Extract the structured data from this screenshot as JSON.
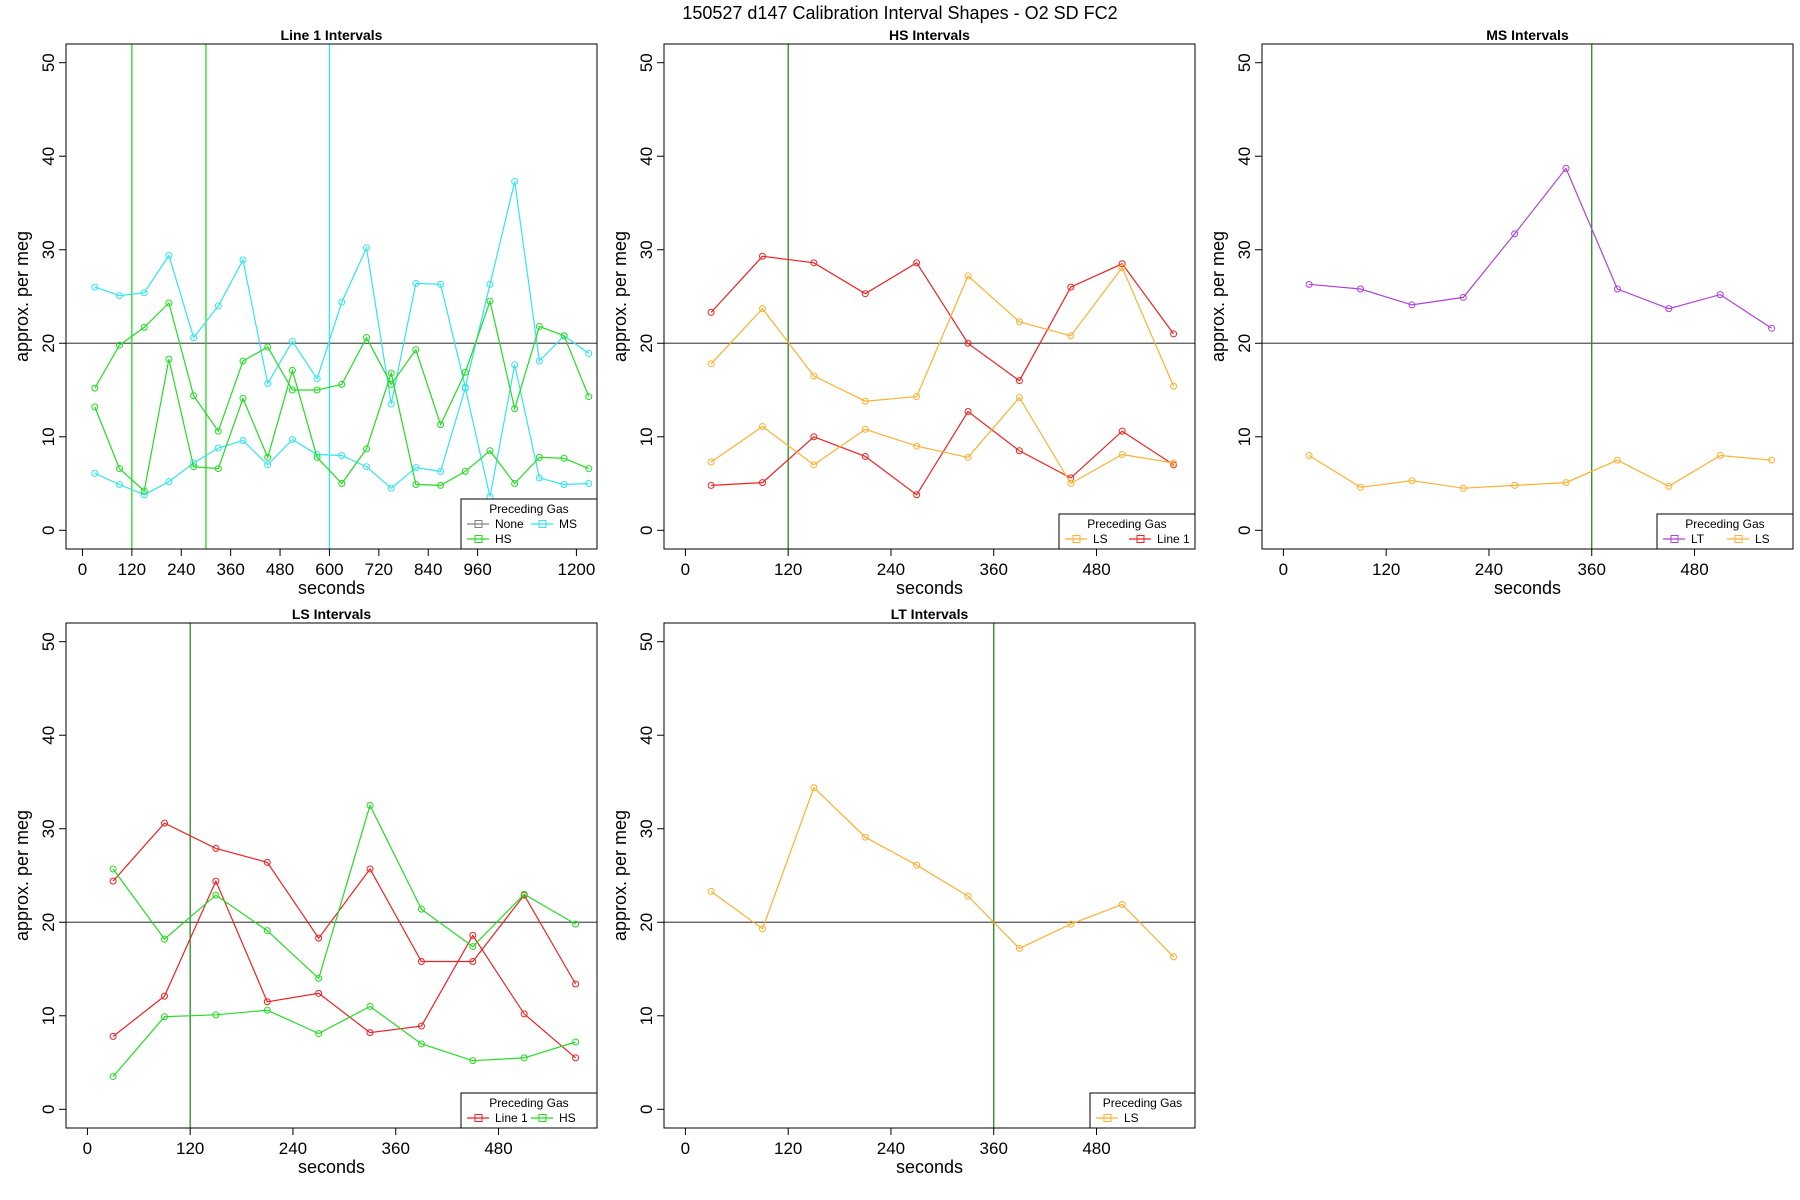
{
  "figure_title": "150527   d147   Calibration Interval Shapes - O2 SD FC2",
  "colors": {
    "None": "#808080",
    "HS": "#22dd22",
    "MS": "#33e5ee",
    "LS": "#ffb030",
    "Line 1": "#ee2222",
    "LT": "#b040e0",
    "ref_line": "#555555",
    "interval_line": "#228b22"
  },
  "chart_data": [
    {
      "type": "line",
      "title": "Line 1 Intervals",
      "xlabel": "seconds",
      "ylabel": "approx. per meg",
      "xlim": [
        -40,
        1250
      ],
      "ylim": [
        -2,
        52
      ],
      "xticks": [
        0,
        120,
        240,
        360,
        480,
        600,
        720,
        840,
        960,
        1200
      ],
      "yticks": [
        0,
        10,
        20,
        30,
        40,
        50
      ],
      "hline": 20,
      "vlines": [
        {
          "x": 120,
          "color": "HS"
        },
        {
          "x": 300,
          "color": "HS"
        },
        {
          "x": 600,
          "color": "MS"
        }
      ],
      "legend": {
        "title": "Preceding Gas",
        "entries": [
          "None",
          "MS",
          "HS"
        ],
        "columns": 2
      },
      "series": [
        {
          "name": "MS",
          "x": [
            30,
            90,
            150,
            210,
            270,
            330,
            390,
            450,
            510,
            570,
            630,
            690,
            750,
            810,
            870,
            930,
            990,
            1050,
            1110,
            1170,
            1230
          ],
          "values": [
            26.0,
            25.1,
            25.4,
            29.4,
            20.6,
            24.0,
            28.9,
            15.7,
            20.2,
            16.2,
            24.4,
            30.2,
            13.5,
            26.4,
            26.3,
            15.3,
            26.3,
            37.3,
            18.1,
            20.8,
            18.9
          ]
        },
        {
          "name": "MS",
          "x": [
            30,
            90,
            150,
            210,
            270,
            330,
            390,
            450,
            510,
            570,
            630,
            690,
            750,
            810,
            870,
            930,
            990,
            1050,
            1110,
            1170,
            1230
          ],
          "values": [
            6.1,
            4.9,
            3.8,
            5.2,
            7.2,
            8.8,
            9.6,
            7.0,
            9.7,
            8.1,
            8.0,
            6.8,
            4.5,
            6.7,
            6.3,
            15.2,
            3.6,
            17.7,
            5.6,
            4.9,
            5.0
          ]
        },
        {
          "name": "HS",
          "x": [
            30,
            90,
            150,
            210,
            270,
            330,
            390,
            450,
            510,
            570,
            630,
            690,
            750,
            810,
            870,
            930,
            990,
            1050,
            1110,
            1170,
            1230
          ],
          "values": [
            15.2,
            19.8,
            21.7,
            24.3,
            14.4,
            10.6,
            18.1,
            19.6,
            15.0,
            15.0,
            15.6,
            20.6,
            15.6,
            19.3,
            11.3,
            16.9,
            24.5,
            13.0,
            21.8,
            20.8,
            14.3
          ]
        },
        {
          "name": "HS",
          "x": [
            30,
            90,
            150,
            210,
            270,
            330,
            390,
            450,
            510,
            570,
            630,
            690,
            750,
            810,
            870,
            930,
            990,
            1050,
            1110,
            1170,
            1230
          ],
          "values": [
            13.2,
            6.6,
            4.2,
            18.3,
            6.8,
            6.6,
            14.1,
            7.8,
            17.1,
            7.8,
            5.0,
            8.7,
            16.8,
            4.9,
            4.8,
            6.3,
            8.5,
            5.0,
            7.8,
            7.7,
            6.6
          ]
        }
      ]
    },
    {
      "type": "line",
      "title": "HS Intervals",
      "xlabel": "seconds",
      "ylabel": "approx. per meg",
      "xlim": [
        -25,
        595
      ],
      "ylim": [
        -2,
        52
      ],
      "xticks": [
        0,
        120,
        240,
        360,
        480
      ],
      "yticks": [
        0,
        10,
        20,
        30,
        40,
        50
      ],
      "hline": 20,
      "vlines": [
        {
          "x": 120,
          "color": "interval_line"
        }
      ],
      "legend": {
        "title": "Preceding Gas",
        "entries": [
          "LS",
          "Line 1"
        ],
        "columns": 2
      },
      "series": [
        {
          "name": "Line 1",
          "x": [
            30,
            90,
            150,
            210,
            270,
            330,
            390,
            450,
            510,
            570
          ],
          "values": [
            23.3,
            29.3,
            28.6,
            25.3,
            28.6,
            20.0,
            16.0,
            26.0,
            28.5,
            21.0
          ]
        },
        {
          "name": "Line 1",
          "x": [
            30,
            90,
            150,
            210,
            270,
            330,
            390,
            450,
            510,
            570
          ],
          "values": [
            4.8,
            5.1,
            10.0,
            7.9,
            3.8,
            12.7,
            8.5,
            5.6,
            10.6,
            7.0
          ]
        },
        {
          "name": "LS",
          "x": [
            30,
            90,
            150,
            210,
            270,
            330,
            390,
            450,
            510,
            570
          ],
          "values": [
            17.8,
            23.7,
            16.5,
            13.8,
            14.3,
            27.2,
            22.3,
            20.8,
            28.1,
            15.4
          ]
        },
        {
          "name": "LS",
          "x": [
            30,
            90,
            150,
            210,
            270,
            330,
            390,
            450,
            510,
            570
          ],
          "values": [
            7.3,
            11.1,
            7.0,
            10.8,
            9.0,
            7.8,
            14.2,
            5.0,
            8.1,
            7.2
          ]
        }
      ]
    },
    {
      "type": "line",
      "title": "MS Intervals",
      "xlabel": "seconds",
      "ylabel": "approx. per meg",
      "xlim": [
        -25,
        595
      ],
      "ylim": [
        -2,
        52
      ],
      "xticks": [
        0,
        120,
        240,
        360,
        480
      ],
      "yticks": [
        0,
        10,
        20,
        30,
        40,
        50
      ],
      "hline": 20,
      "vlines": [
        {
          "x": 360,
          "color": "interval_line"
        }
      ],
      "legend": {
        "title": "Preceding Gas",
        "entries": [
          "LT",
          "LS"
        ],
        "columns": 2
      },
      "series": [
        {
          "name": "LT",
          "x": [
            30,
            90,
            150,
            210,
            270,
            330,
            390,
            450,
            510,
            570
          ],
          "values": [
            26.3,
            25.8,
            24.1,
            24.9,
            31.7,
            38.7,
            25.8,
            23.7,
            25.2,
            21.6
          ]
        },
        {
          "name": "LS",
          "x": [
            30,
            90,
            150,
            210,
            270,
            330,
            390,
            450,
            510,
            570
          ],
          "values": [
            8.0,
            4.6,
            5.3,
            4.5,
            4.8,
            5.1,
            7.5,
            4.7,
            8.0,
            7.5
          ]
        }
      ]
    },
    {
      "type": "line",
      "title": "LS Intervals",
      "xlabel": "seconds",
      "ylabel": "approx. per meg",
      "xlim": [
        -25,
        595
      ],
      "ylim": [
        -2,
        52
      ],
      "xticks": [
        0,
        120,
        240,
        360,
        480
      ],
      "yticks": [
        0,
        10,
        20,
        30,
        40,
        50
      ],
      "hline": 20,
      "vlines": [
        {
          "x": 120,
          "color": "interval_line"
        }
      ],
      "legend": {
        "title": "Preceding Gas",
        "entries": [
          "Line 1",
          "HS"
        ],
        "columns": 2
      },
      "series": [
        {
          "name": "Line 1",
          "x": [
            30,
            90,
            150,
            210,
            270,
            330,
            390,
            450,
            510,
            570
          ],
          "values": [
            24.4,
            30.6,
            27.9,
            26.4,
            18.3,
            25.7,
            15.8,
            15.8,
            22.9,
            13.4
          ]
        },
        {
          "name": "Line 1",
          "x": [
            30,
            90,
            150,
            210,
            270,
            330,
            390,
            450,
            510,
            570
          ],
          "values": [
            7.8,
            12.1,
            24.4,
            11.5,
            12.4,
            8.2,
            8.9,
            18.6,
            10.2,
            5.5
          ]
        },
        {
          "name": "HS",
          "x": [
            30,
            90,
            150,
            210,
            270,
            330,
            390,
            450,
            510,
            570
          ],
          "values": [
            25.7,
            18.2,
            22.9,
            19.1,
            14.0,
            32.5,
            21.4,
            17.4,
            23.0,
            19.8
          ]
        },
        {
          "name": "HS",
          "x": [
            30,
            90,
            150,
            210,
            270,
            330,
            390,
            450,
            510,
            570
          ],
          "values": [
            3.5,
            9.9,
            10.1,
            10.6,
            8.1,
            11.0,
            7.0,
            5.2,
            5.5,
            7.2
          ]
        }
      ]
    },
    {
      "type": "line",
      "title": "LT Intervals",
      "xlabel": "seconds",
      "ylabel": "approx. per meg",
      "xlim": [
        -25,
        595
      ],
      "ylim": [
        -2,
        52
      ],
      "xticks": [
        0,
        120,
        240,
        360,
        480
      ],
      "yticks": [
        0,
        10,
        20,
        30,
        40,
        50
      ],
      "hline": 20,
      "vlines": [
        {
          "x": 360,
          "color": "interval_line"
        }
      ],
      "legend": {
        "title": "Preceding Gas",
        "entries": [
          "LS"
        ],
        "columns": 1
      },
      "series": [
        {
          "name": "LS",
          "x": [
            30,
            90,
            150,
            210,
            270,
            330,
            390,
            450,
            510,
            570
          ],
          "values": [
            23.3,
            19.3,
            34.4,
            29.1,
            26.1,
            22.8,
            17.2,
            19.8,
            21.9,
            16.3
          ]
        }
      ]
    }
  ]
}
